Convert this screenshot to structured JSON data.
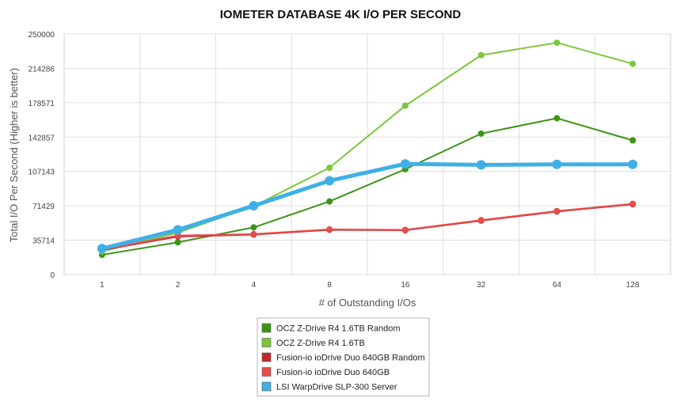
{
  "chart_data": {
    "type": "line",
    "title": "IOMETER DATABASE 4K I/O PER SECOND",
    "xlabel": "# of Outstanding I/Os",
    "ylabel": "Total I/O Per Second (Higher is better)",
    "categories": [
      "1",
      "2",
      "4",
      "8",
      "16",
      "32",
      "64",
      "128"
    ],
    "ylim": [
      0,
      250000
    ],
    "yticks": [
      "0",
      "35714",
      "71429",
      "107143",
      "142857",
      "178571",
      "214286",
      "250000"
    ],
    "grid": true,
    "legend_position": "bottom",
    "series": [
      {
        "name": "OCZ Z-Drive R4 1.6TB Random",
        "color": "#3d9414",
        "values": [
          20500,
          33500,
          49000,
          76000,
          109500,
          146500,
          162500,
          139500
        ]
      },
      {
        "name": "OCZ Z-Drive R4 1.6TB",
        "color": "#7cc63d",
        "values": [
          24000,
          43500,
          71000,
          111000,
          175500,
          228000,
          241000,
          219000
        ]
      },
      {
        "name": "Fusion-io ioDrive Duo 640GB Random",
        "color": "#c4272b",
        "values": [
          25500,
          39500,
          41500,
          46500,
          46000,
          56000,
          65500,
          73000
        ]
      },
      {
        "name": "Fusion-io ioDrive Duo 640GB",
        "color": "#e84c4c",
        "values": [
          26000,
          40500,
          42000,
          47000,
          46500,
          56500,
          66000,
          73500
        ]
      },
      {
        "name": "LSI WarpDrive SLP-300 Server",
        "color": "#3fb0e6",
        "values": [
          27000,
          46500,
          71500,
          97500,
          115000,
          114000,
          114500,
          114500
        ]
      }
    ]
  }
}
